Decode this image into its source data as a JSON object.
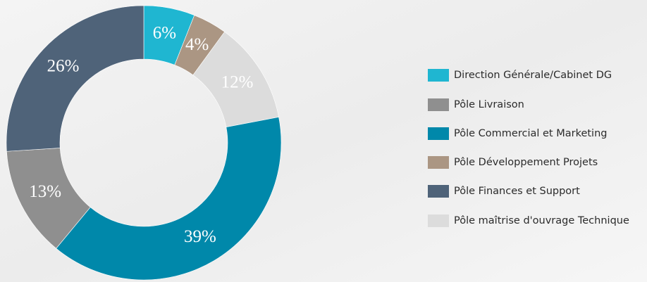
{
  "chart_data": {
    "type": "pie",
    "categories": [
      "Direction Générale/Cabinet DG",
      "Pôle Livraison",
      "Pôle Commercial et Marketing",
      "Pôle Développement Projets",
      "Pôle Finances et Support",
      "Pôle maîtrise d'ouvrage Technique"
    ],
    "values": [
      6,
      13,
      39,
      4,
      26,
      12
    ],
    "value_labels": [
      "6%",
      "13%",
      "39%",
      "4%",
      "26%",
      "12%"
    ],
    "colors": [
      "#1fb6d1",
      "#8f8f8f",
      "#0088aa",
      "#ab9683",
      "#4f6379",
      "#dcdcdc"
    ],
    "legend": "right"
  }
}
